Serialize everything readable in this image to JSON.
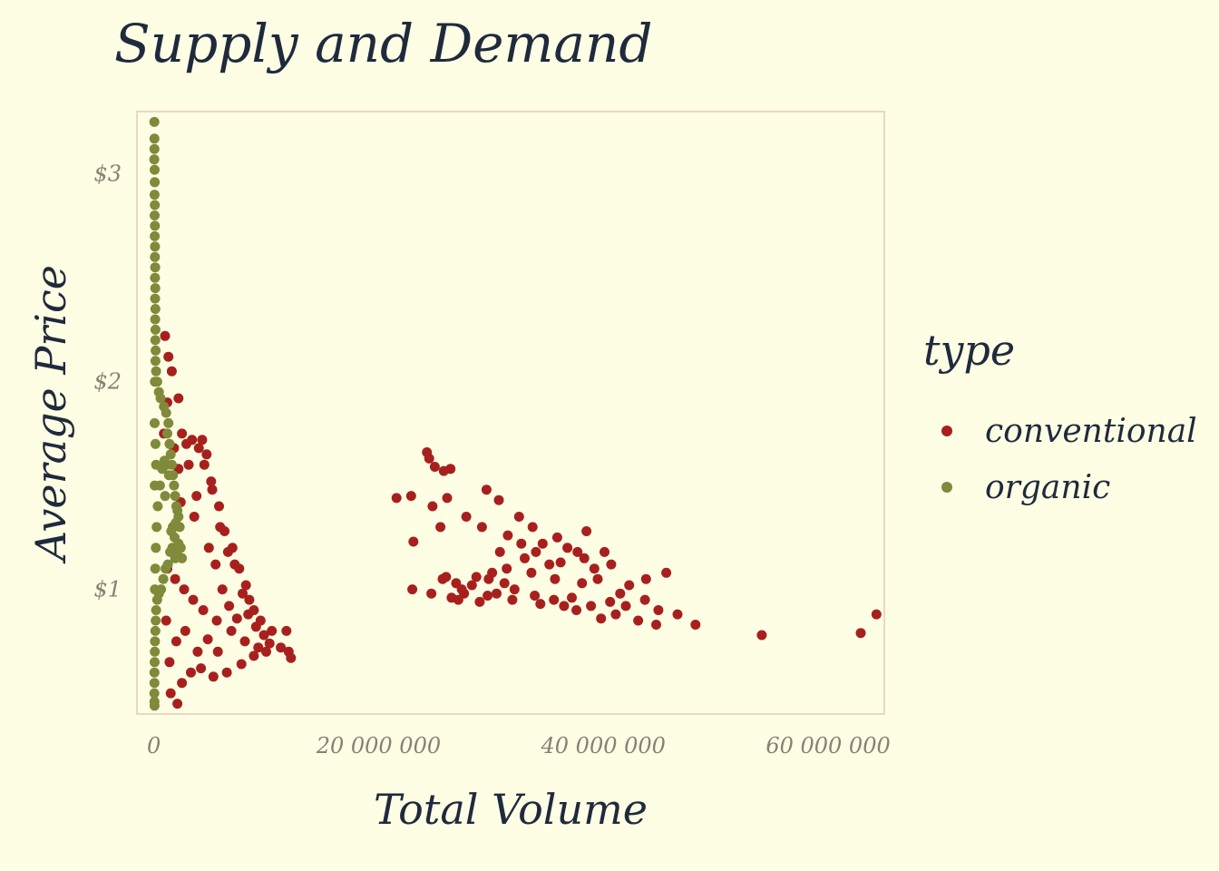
{
  "chart_data": {
    "type": "scatter",
    "title": "Supply and Demand",
    "xlabel": "Total Volume",
    "ylabel": "Average Price",
    "xlim": [
      -1500000,
      65000000
    ],
    "ylim": [
      0.4,
      3.3
    ],
    "x_ticks": [
      {
        "value": 0,
        "label": "0"
      },
      {
        "value": 20000000,
        "label": "20 000 000"
      },
      {
        "value": 40000000,
        "label": "40 000 000"
      },
      {
        "value": 60000000,
        "label": "60 000 000"
      }
    ],
    "y_ticks": [
      {
        "value": 1,
        "label": "$1"
      },
      {
        "value": 2,
        "label": "$2"
      },
      {
        "value": 3,
        "label": "$3"
      }
    ],
    "grid": false,
    "legend": {
      "title": "type",
      "position": "right",
      "entries": [
        {
          "name": "conventional",
          "color": "#a8201e"
        },
        {
          "name": "organic",
          "color": "#7f8a3a"
        }
      ]
    },
    "series": [
      {
        "name": "conventional",
        "color": "#a8201e",
        "points": [
          [
            24300000,
            1.66
          ],
          [
            24500000,
            1.63
          ],
          [
            25000000,
            1.59
          ],
          [
            25800000,
            1.57
          ],
          [
            26400000,
            1.58
          ],
          [
            21600000,
            1.44
          ],
          [
            22900000,
            1.45
          ],
          [
            24800000,
            1.4
          ],
          [
            26100000,
            1.44
          ],
          [
            27800000,
            1.35
          ],
          [
            29600000,
            1.48
          ],
          [
            30700000,
            1.43
          ],
          [
            32500000,
            1.35
          ],
          [
            33700000,
            1.3
          ],
          [
            35900000,
            1.25
          ],
          [
            38500000,
            1.28
          ],
          [
            36800000,
            1.2
          ],
          [
            40100000,
            1.18
          ],
          [
            23100000,
            1.23
          ],
          [
            25500000,
            1.3
          ],
          [
            29200000,
            1.3
          ],
          [
            31500000,
            1.26
          ],
          [
            34600000,
            1.22
          ],
          [
            37700000,
            1.18
          ],
          [
            33000000,
            1.15
          ],
          [
            30800000,
            1.18
          ],
          [
            35200000,
            1.12
          ],
          [
            39200000,
            1.1
          ],
          [
            42300000,
            1.02
          ],
          [
            45600000,
            1.08
          ],
          [
            43800000,
            1.05
          ],
          [
            41500000,
            0.98
          ],
          [
            38100000,
            1.03
          ],
          [
            35700000,
            1.05
          ],
          [
            33600000,
            1.08
          ],
          [
            31400000,
            1.1
          ],
          [
            29800000,
            1.05
          ],
          [
            28300000,
            1.02
          ],
          [
            26900000,
            1.03
          ],
          [
            25700000,
            1.05
          ],
          [
            27600000,
            0.98
          ],
          [
            29000000,
            0.94
          ],
          [
            30500000,
            0.98
          ],
          [
            32100000,
            1.0
          ],
          [
            33900000,
            0.97
          ],
          [
            35600000,
            0.95
          ],
          [
            37200000,
            0.96
          ],
          [
            38900000,
            0.92
          ],
          [
            40600000,
            0.94
          ],
          [
            42000000,
            0.92
          ],
          [
            43700000,
            0.95
          ],
          [
            44900000,
            0.9
          ],
          [
            36500000,
            0.92
          ],
          [
            34400000,
            0.93
          ],
          [
            31900000,
            0.95
          ],
          [
            29700000,
            0.97
          ],
          [
            27100000,
            0.95
          ],
          [
            24700000,
            0.98
          ],
          [
            23000000,
            1.0
          ],
          [
            46600000,
            0.88
          ],
          [
            43100000,
            0.85
          ],
          [
            39800000,
            0.86
          ],
          [
            37600000,
            0.9
          ],
          [
            41100000,
            0.88
          ],
          [
            44700000,
            0.83
          ],
          [
            48200000,
            0.83
          ],
          [
            54100000,
            0.78
          ],
          [
            62900000,
            0.79
          ],
          [
            64300000,
            0.88
          ],
          [
            39500000,
            1.05
          ],
          [
            40700000,
            1.12
          ],
          [
            38300000,
            1.15
          ],
          [
            36200000,
            1.13
          ],
          [
            34000000,
            1.18
          ],
          [
            32700000,
            1.22
          ],
          [
            31200000,
            1.03
          ],
          [
            30100000,
            1.08
          ],
          [
            28700000,
            1.06
          ],
          [
            27400000,
            1.0
          ],
          [
            26500000,
            0.96
          ],
          [
            26000000,
            1.06
          ],
          [
            1200000,
            1.9
          ],
          [
            900000,
            1.75
          ],
          [
            1800000,
            1.68
          ],
          [
            2200000,
            1.58
          ],
          [
            3100000,
            1.6
          ],
          [
            4000000,
            1.68
          ],
          [
            4500000,
            1.6
          ],
          [
            5100000,
            1.52
          ],
          [
            5800000,
            1.4
          ],
          [
            6300000,
            1.28
          ],
          [
            7000000,
            1.2
          ],
          [
            7600000,
            1.1
          ],
          [
            8200000,
            1.02
          ],
          [
            8900000,
            0.9
          ],
          [
            9500000,
            0.85
          ],
          [
            10500000,
            0.8
          ],
          [
            11300000,
            0.72
          ],
          [
            12000000,
            0.7
          ],
          [
            12200000,
            0.67
          ],
          [
            11800000,
            0.8
          ],
          [
            10000000,
            0.7
          ],
          [
            8900000,
            0.68
          ],
          [
            7800000,
            0.64
          ],
          [
            6500000,
            0.6
          ],
          [
            5300000,
            0.58
          ],
          [
            4200000,
            0.62
          ],
          [
            3300000,
            0.6
          ],
          [
            2500000,
            0.55
          ],
          [
            1500000,
            0.5
          ],
          [
            2100000,
            0.45
          ],
          [
            1000000,
            2.22
          ],
          [
            1300000,
            2.12
          ],
          [
            1600000,
            2.05
          ],
          [
            2200000,
            1.92
          ],
          [
            2500000,
            1.75
          ],
          [
            2900000,
            1.7
          ],
          [
            3400000,
            1.72
          ],
          [
            4300000,
            1.72
          ],
          [
            4700000,
            1.65
          ],
          [
            5200000,
            1.48
          ],
          [
            5900000,
            1.3
          ],
          [
            6600000,
            1.18
          ],
          [
            7200000,
            1.12
          ],
          [
            7900000,
            0.98
          ],
          [
            8500000,
            0.95
          ],
          [
            9100000,
            0.82
          ],
          [
            9800000,
            0.78
          ],
          [
            10300000,
            0.74
          ],
          [
            9300000,
            0.72
          ],
          [
            8100000,
            0.75
          ],
          [
            6900000,
            0.8
          ],
          [
            5600000,
            0.85
          ],
          [
            4400000,
            0.9
          ],
          [
            3500000,
            0.95
          ],
          [
            2700000,
            1.0
          ],
          [
            1900000,
            1.05
          ],
          [
            1700000,
            1.3
          ],
          [
            2400000,
            1.42
          ],
          [
            3800000,
            1.45
          ],
          [
            6100000,
            1.0
          ],
          [
            6700000,
            0.92
          ],
          [
            7400000,
            0.86
          ],
          [
            8400000,
            0.88
          ],
          [
            4900000,
            1.2
          ],
          [
            3600000,
            1.35
          ],
          [
            5500000,
            1.12
          ],
          [
            2000000,
            0.75
          ],
          [
            2800000,
            0.8
          ],
          [
            3900000,
            0.7
          ],
          [
            4800000,
            0.76
          ],
          [
            5700000,
            0.7
          ],
          [
            1400000,
            0.65
          ],
          [
            1100000,
            0.85
          ],
          [
            1200000,
            1.1
          ]
        ]
      },
      {
        "name": "organic",
        "color": "#7f8a3a",
        "points": [
          [
            50000,
            3.25
          ],
          [
            55000,
            3.17
          ],
          [
            60000,
            3.12
          ],
          [
            45000,
            3.07
          ],
          [
            70000,
            3.02
          ],
          [
            80000,
            2.96
          ],
          [
            65000,
            2.9
          ],
          [
            90000,
            2.85
          ],
          [
            75000,
            2.8
          ],
          [
            100000,
            2.75
          ],
          [
            85000,
            2.7
          ],
          [
            110000,
            2.65
          ],
          [
            95000,
            2.6
          ],
          [
            120000,
            2.55
          ],
          [
            105000,
            2.5
          ],
          [
            130000,
            2.45
          ],
          [
            115000,
            2.4
          ],
          [
            140000,
            2.35
          ],
          [
            125000,
            2.3
          ],
          [
            150000,
            2.25
          ],
          [
            135000,
            2.2
          ],
          [
            160000,
            2.15
          ],
          [
            145000,
            2.1
          ],
          [
            200000,
            2.05
          ],
          [
            300000,
            2.0
          ],
          [
            450000,
            1.95
          ],
          [
            600000,
            1.92
          ],
          [
            900000,
            1.88
          ],
          [
            1100000,
            1.85
          ],
          [
            1300000,
            1.8
          ],
          [
            1200000,
            1.75
          ],
          [
            1400000,
            1.7
          ],
          [
            1500000,
            1.65
          ],
          [
            1600000,
            1.6
          ],
          [
            1700000,
            1.55
          ],
          [
            1800000,
            1.5
          ],
          [
            1900000,
            1.45
          ],
          [
            2000000,
            1.4
          ],
          [
            2100000,
            1.38
          ],
          [
            2200000,
            1.35
          ],
          [
            1950000,
            1.32
          ],
          [
            1750000,
            1.3
          ],
          [
            1550000,
            1.28
          ],
          [
            1850000,
            1.25
          ],
          [
            1650000,
            1.2
          ],
          [
            1900000,
            1.15
          ],
          [
            2400000,
            1.2
          ],
          [
            2500000,
            1.15
          ],
          [
            1450000,
            1.18
          ],
          [
            1250000,
            1.12
          ],
          [
            1050000,
            1.1
          ],
          [
            850000,
            1.05
          ],
          [
            650000,
            1.0
          ],
          [
            450000,
            0.98
          ],
          [
            300000,
            0.95
          ],
          [
            200000,
            0.9
          ],
          [
            170000,
            0.85
          ],
          [
            140000,
            0.8
          ],
          [
            110000,
            0.75
          ],
          [
            90000,
            0.7
          ],
          [
            70000,
            0.65
          ],
          [
            60000,
            0.6
          ],
          [
            55000,
            0.55
          ],
          [
            50000,
            0.5
          ],
          [
            60000,
            0.46
          ],
          [
            65000,
            0.44
          ],
          [
            1000000,
            1.45
          ],
          [
            1350000,
            1.55
          ],
          [
            1150000,
            1.6
          ],
          [
            950000,
            1.62
          ],
          [
            750000,
            1.58
          ],
          [
            550000,
            1.5
          ],
          [
            350000,
            1.4
          ],
          [
            250000,
            1.3
          ],
          [
            180000,
            1.2
          ],
          [
            130000,
            1.1
          ],
          [
            100000,
            1.0
          ],
          [
            80000,
            1.5
          ],
          [
            70000,
            1.8
          ],
          [
            100000,
            2.0
          ],
          [
            150000,
            1.7
          ],
          [
            200000,
            1.6
          ],
          [
            2300000,
            1.3
          ],
          [
            2200000,
            1.22
          ],
          [
            2050000,
            1.18
          ]
        ]
      }
    ]
  }
}
